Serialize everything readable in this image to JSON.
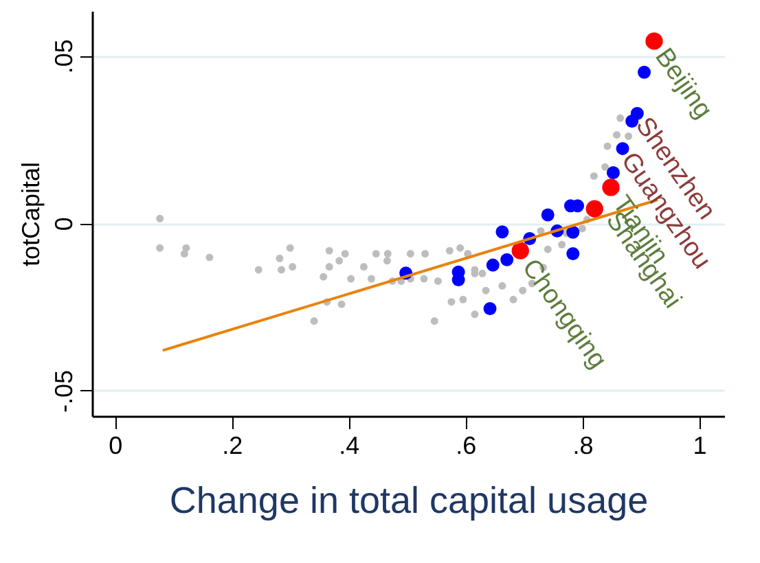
{
  "chart_data": {
    "type": "scatter",
    "xlabel": "Change in total capital usage",
    "ylabel": "totCapital",
    "xlim": [
      -0.039,
      1.043
    ],
    "ylim": [
      -0.0576,
      0.0634
    ],
    "xticks": [
      0,
      {
        "value": 0.2,
        "label": ".2"
      },
      {
        "value": 0.4,
        "label": ".4"
      },
      {
        "value": 0.6,
        "label": ".6"
      },
      {
        "value": 0.8,
        "label": ".8"
      },
      1
    ],
    "yticks": [
      {
        "value": -0.05,
        "label": "-.05"
      },
      0,
      {
        "value": 0.05,
        "label": ".05"
      }
    ],
    "grid": "y",
    "marker": "circle",
    "series": [
      {
        "color": "#bdbdbd",
        "x": [
          0.077,
          0.077,
          0.122,
          0.119,
          0.162,
          0.246,
          0.282,
          0.285,
          0.3,
          0.304,
          0.341,
          0.363,
          0.388,
          0.367,
          0.394,
          0.367,
          0.384,
          0.357,
          0.404,
          0.426,
          0.447,
          0.467,
          0.466,
          0.439,
          0.475,
          0.506,
          0.531,
          0.529,
          0.553,
          0.547,
          0.573,
          0.591,
          0.604,
          0.616,
          0.576,
          0.596,
          0.616,
          0.635,
          0.663,
          0.682,
          0.698,
          0.714,
          0.733,
          0.729,
          0.741,
          0.765,
          0.773,
          0.8,
          0.808,
          0.82,
          0.839,
          0.843,
          0.859,
          0.879,
          0.865,
          0.506,
          0.49,
          0.629,
          0.616
        ],
        "values": [
          0.0014,
          -0.0074,
          -0.0074,
          -0.0091,
          -0.0102,
          -0.0139,
          -0.0105,
          -0.0139,
          -0.0074,
          -0.013,
          -0.0292,
          -0.0235,
          -0.0242,
          -0.0082,
          -0.0091,
          -0.013,
          -0.0112,
          -0.016,
          -0.0166,
          -0.013,
          -0.0091,
          -0.0091,
          -0.0112,
          -0.0166,
          -0.0173,
          -0.0091,
          -0.0091,
          -0.0166,
          -0.0173,
          -0.0292,
          -0.0082,
          -0.0074,
          -0.0091,
          -0.0139,
          -0.0235,
          -0.0228,
          -0.0272,
          -0.0201,
          -0.0187,
          -0.0228,
          -0.0201,
          -0.018,
          -0.0132,
          -0.0023,
          -0.0078,
          -0.0064,
          -0.003,
          -0.0016,
          0.0011,
          0.0141,
          0.0168,
          0.023,
          0.0264,
          0.026,
          0.0314,
          -0.0166,
          -0.0173,
          -0.015,
          -0.015
        ]
      },
      {
        "color": "#0000ff",
        "x": [
          0.906,
          0.894,
          0.885,
          0.869,
          0.853,
          0.792,
          0.78,
          0.784,
          0.784,
          0.757,
          0.741,
          0.71,
          0.663,
          0.671,
          0.647,
          0.588,
          0.588,
          0.642,
          0.498
        ],
        "values": [
          0.0451,
          0.0328,
          0.0305,
          0.0223,
          0.0151,
          0.0052,
          0.0052,
          -0.0027,
          -0.0091,
          -0.0023,
          0.0025,
          -0.0046,
          -0.0026,
          -0.0109,
          -0.0125,
          -0.0146,
          -0.0169,
          -0.0255,
          -0.0149
        ]
      },
      {
        "color": "#ff0000",
        "x": [
          0.923,
          0.849,
          0.821,
          0.694
        ],
        "values": [
          0.0544,
          0.0107,
          0.0043,
          -0.0082
        ]
      },
      {
        "type": "line",
        "color": "#e8830c",
        "marker": "none",
        "x": [
          0.082,
          0.929
        ],
        "values": [
          -0.038,
          0.007
        ]
      }
    ],
    "annotations": [
      {
        "text": "Beijing",
        "x": 0.923,
        "y": 0.0544
      },
      {
        "text": "Shenzhen",
        "x": 0.894,
        "y": 0.0328
      },
      {
        "text": "Guangzhou",
        "x": 0.869,
        "y": 0.0223
      },
      {
        "text": "Tianjin",
        "x": 0.849,
        "y": 0.0107
      },
      {
        "text": "Shanghai",
        "x": 0.851,
        "y": 0.0025
      },
      {
        "text": "Chongqing",
        "x": 0.694,
        "y": -0.0082
      }
    ]
  }
}
